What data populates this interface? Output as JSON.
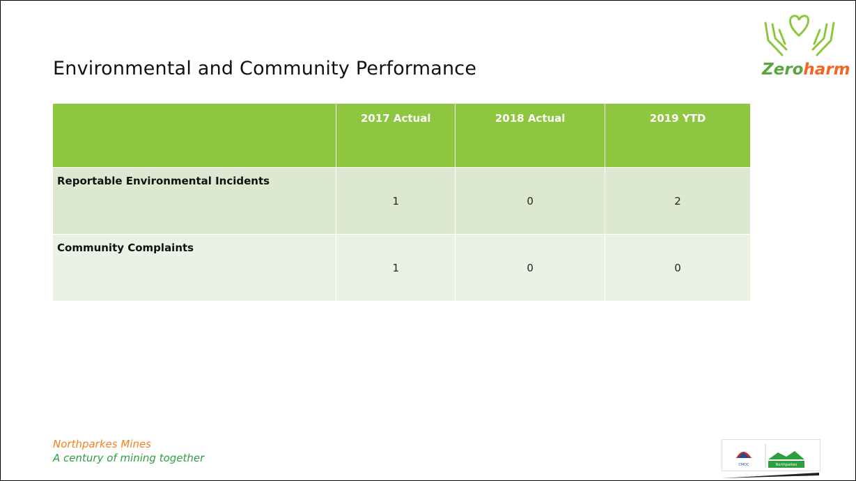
{
  "title": "Environmental and Community Performance",
  "logo": {
    "part1": "Zero",
    "part2": "harm"
  },
  "table": {
    "header": [
      "2017 Actual",
      "2018 Actual",
      "2019 YTD"
    ],
    "rows": [
      {
        "label": "Reportable Environmental Incidents",
        "values": [
          1,
          0,
          2
        ]
      },
      {
        "label": "Community Complaints",
        "values": [
          1,
          0,
          0
        ]
      }
    ]
  },
  "footer": {
    "line1": "Northparkes Mines",
    "line2": "A century of mining together"
  },
  "corner_logo": {
    "left": "CMOC",
    "right": "Northparkes"
  }
}
